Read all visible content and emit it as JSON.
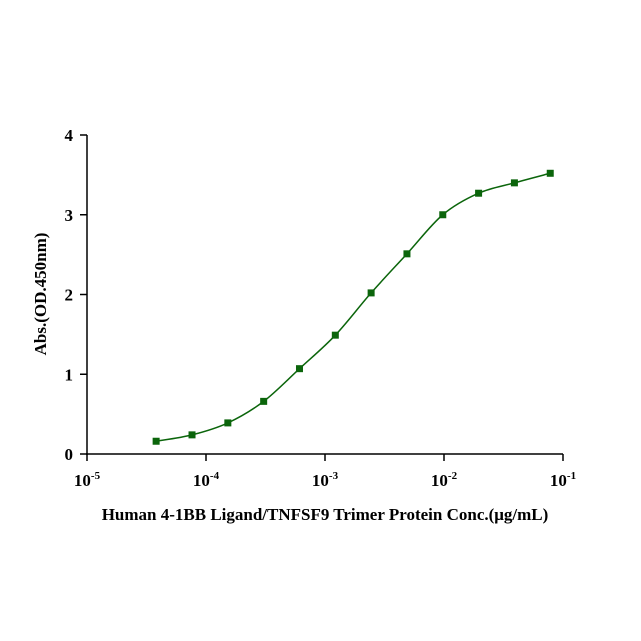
{
  "chart_data": {
    "type": "scatter",
    "xlabel": "Human 4-1BB Ligand/TNFSF9 Trimer Protein Conc.(μg/mL)",
    "ylabel": "Abs.(OD.450nm)",
    "xscale": "log",
    "xlim": [
      1e-05,
      0.1
    ],
    "ylim": [
      0,
      4
    ],
    "xticks": [
      {
        "value": 1e-05,
        "label": "10",
        "exponent": "-5"
      },
      {
        "value": 0.0001,
        "label": "10",
        "exponent": "-4"
      },
      {
        "value": 0.001,
        "label": "10",
        "exponent": "-3"
      },
      {
        "value": 0.01,
        "label": "10",
        "exponent": "-2"
      },
      {
        "value": 0.1,
        "label": "10",
        "exponent": "-1"
      }
    ],
    "yticks": [
      0,
      1,
      2,
      3,
      4
    ],
    "fit_line": true,
    "series": [
      {
        "color": "#0b650b",
        "x": [
          3.81e-05,
          7.63e-05,
          0.0001526,
          0.0003052,
          0.0006104,
          0.001221,
          0.002441,
          0.004883,
          0.009766,
          0.01953,
          0.03906,
          0.078125
        ],
        "values": [
          0.16,
          0.24,
          0.39,
          0.66,
          1.07,
          1.49,
          2.02,
          2.51,
          3.0,
          3.27,
          3.4,
          3.52
        ]
      }
    ]
  }
}
